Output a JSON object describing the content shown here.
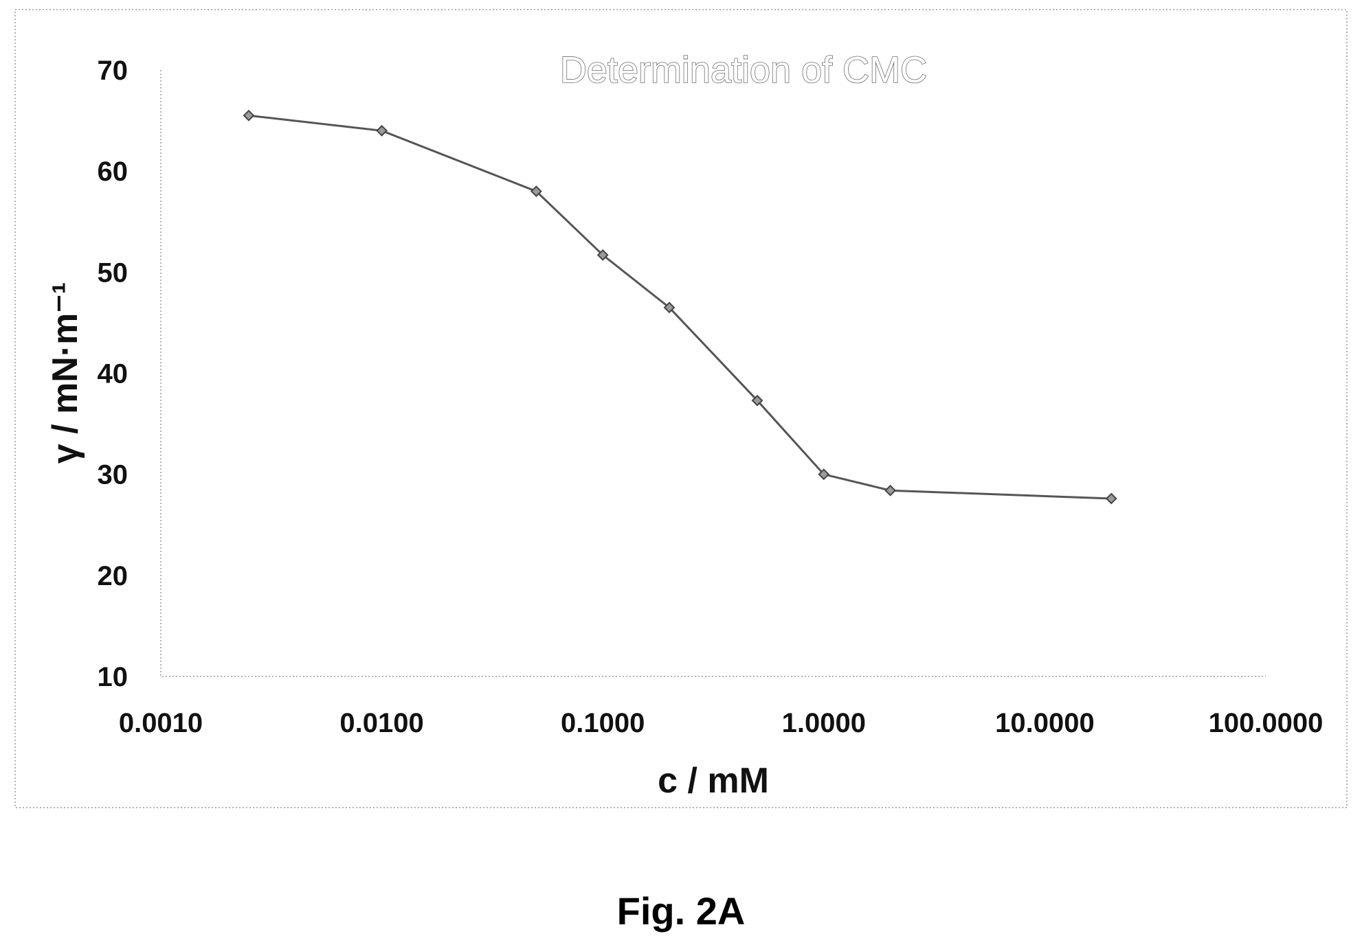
{
  "chart_data": {
    "type": "line",
    "title": "Determination of CMC",
    "xlabel": "c / mM",
    "ylabel": "γ / mN·m⁻¹",
    "x_scale": "log",
    "xlim": [
      0.001,
      100
    ],
    "ylim": [
      10,
      70
    ],
    "x_tick_labels": [
      "0.0010",
      "0.0100",
      "0.1000",
      "1.0000",
      "10.0000",
      "100.0000"
    ],
    "y_tick_labels": [
      "10",
      "20",
      "30",
      "40",
      "50",
      "60",
      "70"
    ],
    "grid": false,
    "legend": "none",
    "series": [
      {
        "x": [
          0.0025,
          0.01,
          0.05,
          0.1,
          0.2,
          0.5,
          1.0,
          2.0,
          20.0
        ],
        "y": [
          65.5,
          64.0,
          58.0,
          51.7,
          46.5,
          37.3,
          30.0,
          28.4,
          27.6
        ]
      }
    ]
  },
  "caption": "Fig. 2A",
  "colors": {
    "line": "#555555",
    "marker": "#9a9a9a",
    "text": "#111111"
  }
}
